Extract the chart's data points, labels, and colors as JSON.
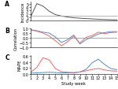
{
  "study_weeks": [
    1,
    2,
    3,
    4,
    5,
    6,
    7,
    8,
    9,
    10,
    11,
    12,
    13,
    14,
    15
  ],
  "panel_A": {
    "incidence": [
      1.2,
      5.0,
      4.3,
      2.8,
      1.8,
      1.4,
      1.1,
      0.9,
      0.75,
      0.65,
      0.55,
      0.45,
      0.38,
      0.32,
      0.28
    ],
    "hline": 1.5,
    "ylabel": "Incidence",
    "ylim": [
      0,
      5.5
    ],
    "yticks": [
      0,
      1,
      2,
      3,
      4,
      5
    ],
    "line_color": "#555555",
    "hline_color": "#aaaaaa"
  },
  "panel_B": {
    "cough_blue": [
      0.85,
      0.75,
      0.6,
      0.5,
      0.1,
      -0.5,
      -0.2,
      0.3,
      -0.65,
      -0.2,
      0.1,
      0.4,
      0.55,
      0.65,
      0.65
    ],
    "fever_red": [
      0.85,
      0.7,
      0.5,
      0.2,
      -0.3,
      -0.85,
      -0.4,
      0.15,
      -0.55,
      0.05,
      0.25,
      0.6,
      0.45,
      0.55,
      0.6
    ],
    "hline": 0,
    "ylabel": "Correlation",
    "ylim": [
      -1.0,
      1.0
    ],
    "yticks": [
      -1.0,
      -0.5,
      0.0,
      0.5,
      1.0
    ],
    "blue_color": "#5588CC",
    "red_color": "#EE6666",
    "hline_color": "#888888"
  },
  "panel_C": {
    "cough_blue": [
      0.02,
      0.03,
      0.04,
      0.05,
      0.04,
      0.03,
      0.03,
      0.03,
      0.06,
      0.15,
      0.38,
      0.5,
      0.32,
      0.18,
      0.14
    ],
    "fever_red": [
      0.05,
      0.22,
      0.55,
      0.48,
      0.18,
      0.07,
      0.05,
      0.04,
      0.06,
      0.1,
      0.15,
      0.18,
      0.13,
      0.1,
      0.09
    ],
    "ylabel": "MAPE",
    "ylim": [
      0,
      0.65
    ],
    "yticks": [
      0.0,
      0.2,
      0.4,
      0.6
    ],
    "blue_color": "#5588CC",
    "red_color": "#EE6666",
    "xlabel": "Study week"
  },
  "panel_labels": [
    "A",
    "B",
    "C"
  ],
  "tick_fontsize": 3.5,
  "label_fontsize": 3.8,
  "panel_label_fontsize": 5.5
}
